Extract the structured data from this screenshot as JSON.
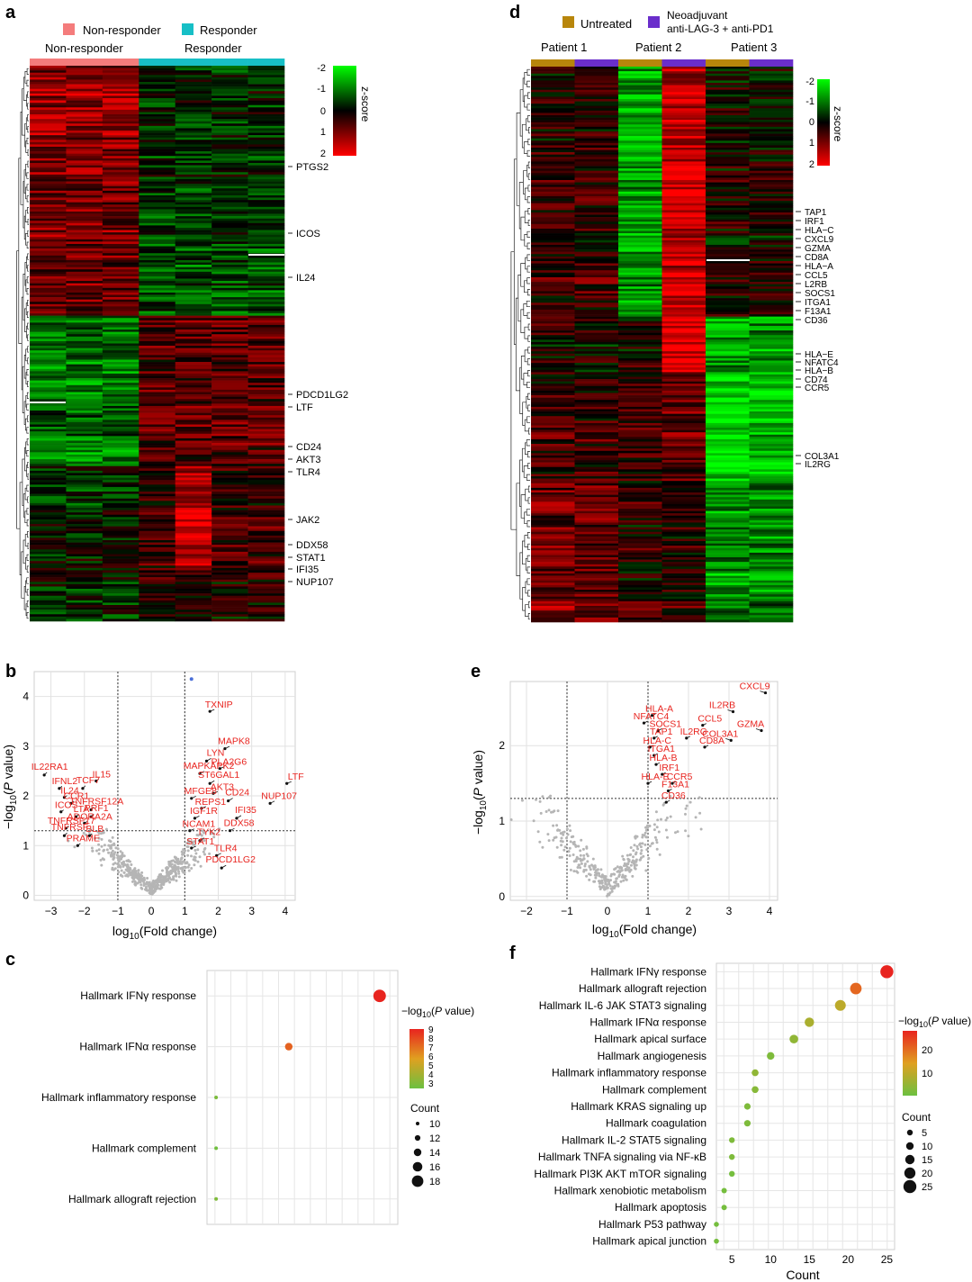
{
  "panels": {
    "a": "a",
    "b": "b",
    "c": "c",
    "d": "d",
    "e": "e",
    "f": "f"
  },
  "colors": {
    "non_responder": "#f47c7c",
    "responder": "#17bfc6",
    "untreated": "#b8860b",
    "neoadjuvant": "#6a2ecb",
    "heat_low": "#00ff00",
    "heat_mid": "#000000",
    "heat_high": "#ff0000",
    "sig_label": "#e8241f",
    "nonsig_point": "#b5b5b5",
    "sig_point_b": "#4a6fd8"
  },
  "chart_data": [
    {
      "panel": "a",
      "type": "heatmap",
      "legend": [
        {
          "label": "Non-responder",
          "color": "#f47c7c"
        },
        {
          "label": "Responder",
          "color": "#17bfc6"
        }
      ],
      "group_labels": [
        "Non-responder",
        "Responder"
      ],
      "groups": [
        "Non-responder",
        "Non-responder",
        "Non-responder",
        "Responder",
        "Responder",
        "Responder",
        "Responder"
      ],
      "colorbar": {
        "title": "z-score",
        "ticks": [
          "-2",
          "-1",
          "0",
          "1",
          "2"
        ]
      },
      "gene_labels": [
        "PTGS2",
        "ICOS",
        "IL24",
        "PDCD1LG2",
        "LTF",
        "CD24",
        "AKT3",
        "TLR4",
        "JAK2",
        "DDX58",
        "STAT1",
        "IFI35",
        "NUP107"
      ]
    },
    {
      "panel": "d",
      "type": "heatmap",
      "legend": [
        {
          "label": "Untreated",
          "color": "#b8860b"
        },
        {
          "label": "Neoadjuvant",
          "label2": "anti-LAG-3 + anti-PD1",
          "color": "#6a2ecb"
        }
      ],
      "group_labels": [
        "Patient 1",
        "Patient 2",
        "Patient 3"
      ],
      "groups": [
        "Untreated",
        "Neoadjuvant",
        "Untreated",
        "Neoadjuvant",
        "Untreated",
        "Neoadjuvant"
      ],
      "colorbar": {
        "title": "z-score",
        "ticks": [
          "-2",
          "-1",
          "0",
          "1",
          "2"
        ]
      },
      "gene_labels": [
        "TAP1",
        "IRF1",
        "HLA−C",
        "CXCL9",
        "GZMA",
        "CD8A",
        "HLA−A",
        "CCL5",
        "L2RB",
        "SOCS1",
        "ITGA1",
        "F13A1",
        "CD36",
        "HLA−E",
        "NFATC4",
        "HLA−B",
        "CD74",
        "CCR5",
        "COL3A1",
        "IL2RG"
      ]
    },
    {
      "panel": "b",
      "type": "scatter",
      "xlabel": "log10(Fold change)",
      "ylabel": "−log10(P value)",
      "xlim": [
        -3.5,
        4.3
      ],
      "ylim": [
        -0.1,
        4.5
      ],
      "xticks": [
        "−3",
        "−2",
        "−1",
        "0",
        "1",
        "2",
        "3",
        "4"
      ],
      "yticks": [
        "0",
        "1",
        "2",
        "3",
        "4"
      ],
      "thresholds": {
        "x": [
          -1,
          1
        ],
        "y": 1.3
      },
      "labeled_points": [
        {
          "label": "TXNIP",
          "x": 1.75,
          "y": 3.7
        },
        {
          "label": "MAPK8",
          "x": 2.2,
          "y": 2.95
        },
        {
          "label": "LYN",
          "x": 1.65,
          "y": 2.7
        },
        {
          "label": "PLA2G6",
          "x": 2.05,
          "y": 2.55
        },
        {
          "label": "MAPKAPK2",
          "x": 1.45,
          "y": 2.45
        },
        {
          "label": "ST6GAL1",
          "x": 1.75,
          "y": 2.25
        },
        {
          "label": "AKT3",
          "x": 1.85,
          "y": 2.05
        },
        {
          "label": "MFGE8",
          "x": 1.2,
          "y": 1.95
        },
        {
          "label": "CD24",
          "x": 2.3,
          "y": 1.9
        },
        {
          "label": "REPS1",
          "x": 1.5,
          "y": 1.75
        },
        {
          "label": "IGF1R",
          "x": 1.3,
          "y": 1.55
        },
        {
          "label": "IFI35",
          "x": 2.55,
          "y": 1.55
        },
        {
          "label": "NCAM1",
          "x": 1.15,
          "y": 1.3
        },
        {
          "label": "DDX58",
          "x": 2.35,
          "y": 1.3
        },
        {
          "label": "TYK2",
          "x": 1.45,
          "y": 1.1
        },
        {
          "label": "STAT1",
          "x": 1.2,
          "y": 0.95
        },
        {
          "label": "TLR4",
          "x": 1.95,
          "y": 0.8
        },
        {
          "label": "PDCD1LG2",
          "x": 2.1,
          "y": 0.55
        },
        {
          "label": "LTF",
          "x": 4.05,
          "y": 2.25
        },
        {
          "label": "NUP107",
          "x": 3.55,
          "y": 1.85
        },
        {
          "label": "IL22RA1",
          "x": -3.2,
          "y": 2.42
        },
        {
          "label": "IL15",
          "x": -1.65,
          "y": 2.3
        },
        {
          "label": "IFNL2",
          "x": -2.75,
          "y": 2.15
        },
        {
          "label": "TCF7",
          "x": -2.05,
          "y": 2.15
        },
        {
          "label": "IL24",
          "x": -2.6,
          "y": 1.97
        },
        {
          "label": "CCR1",
          "x": -2.4,
          "y": 1.85
        },
        {
          "label": "TNFRSF12A",
          "x": -1.8,
          "y": 1.72
        },
        {
          "label": "ICOS",
          "x": -2.7,
          "y": 1.68
        },
        {
          "label": "LTA",
          "x": -2.25,
          "y": 1.58
        },
        {
          "label": "PRF1",
          "x": -1.8,
          "y": 1.58
        },
        {
          "label": "ADORA2A",
          "x": -2.0,
          "y": 1.45
        },
        {
          "label": "TNFRSF17",
          "x": -2.55,
          "y": 1.35
        },
        {
          "label": "TNFRSF",
          "x": -2.6,
          "y": 1.2
        },
        {
          "label": "BLB",
          "x": -1.85,
          "y": 1.2
        },
        {
          "label": "PRAME",
          "x": -2.2,
          "y": 1.0
        }
      ],
      "top_point": {
        "x": 1.2,
        "y": 4.35
      }
    },
    {
      "panel": "e",
      "type": "scatter",
      "xlabel": "log10(Fold change)",
      "ylabel": "−log10(P value)",
      "xlim": [
        -2.4,
        4.2
      ],
      "ylim": [
        -0.05,
        2.85
      ],
      "xticks": [
        "−2",
        "−1",
        "0",
        "1",
        "2",
        "3",
        "4"
      ],
      "yticks": [
        "0",
        "1",
        "2"
      ],
      "thresholds": {
        "x": [
          -1,
          1
        ],
        "y": 1.3
      },
      "labeled_points": [
        {
          "label": "CXCL9",
          "x": 3.9,
          "y": 2.7
        },
        {
          "label": "GZMA",
          "x": 3.8,
          "y": 2.2
        },
        {
          "label": "IL2RB",
          "x": 3.1,
          "y": 2.45
        },
        {
          "label": "CCL5",
          "x": 2.35,
          "y": 2.27
        },
        {
          "label": "COL3A1",
          "x": 3.05,
          "y": 2.07
        },
        {
          "label": "IL2RG",
          "x": 1.95,
          "y": 2.1
        },
        {
          "label": "CD8A",
          "x": 2.4,
          "y": 1.98
        },
        {
          "label": "HLA-A",
          "x": 1.1,
          "y": 2.4
        },
        {
          "label": "NFATC4",
          "x": 0.9,
          "y": 2.3
        },
        {
          "label": "SOCS1",
          "x": 1.25,
          "y": 2.2
        },
        {
          "label": "TAP1",
          "x": 1.15,
          "y": 2.1
        },
        {
          "label": "HLA-C",
          "x": 1.05,
          "y": 1.98
        },
        {
          "label": "ITGA1",
          "x": 1.15,
          "y": 1.87
        },
        {
          "label": "HLA-B",
          "x": 1.2,
          "y": 1.75
        },
        {
          "label": "IRF1",
          "x": 1.35,
          "y": 1.62
        },
        {
          "label": "HLA-E",
          "x": 1.0,
          "y": 1.5
        },
        {
          "label": "CCR5",
          "x": 1.6,
          "y": 1.5
        },
        {
          "label": "F13A1",
          "x": 1.5,
          "y": 1.4
        },
        {
          "label": "CD36",
          "x": 1.45,
          "y": 1.25
        }
      ]
    },
    {
      "panel": "c",
      "type": "scatter",
      "subtype": "dotplot",
      "categories": [
        "Hallmark IFNγ response",
        "Hallmark IFNα response",
        "Hallmark inflammatory response",
        "Hallmark complement",
        "Hallmark allograft rejection"
      ],
      "series": [
        {
          "count": 19,
          "neglog10p": 9
        },
        {
          "count": 14,
          "neglog10p": 7.5
        },
        {
          "count": 10,
          "neglog10p": 3.4
        },
        {
          "count": 10,
          "neglog10p": 3.1
        },
        {
          "count": 10,
          "neglog10p": 3.5
        }
      ],
      "xlim": [
        9.5,
        20
      ],
      "color_legend_title": "−log10(P value)",
      "color_ticks": [
        "9",
        "8",
        "7",
        "6",
        "5",
        "4",
        "3"
      ],
      "size_legend_title": "Count",
      "size_ticks": [
        "10",
        "12",
        "14",
        "16",
        "18"
      ]
    },
    {
      "panel": "f",
      "type": "scatter",
      "subtype": "dotplot",
      "xlabel": "Count",
      "categories": [
        "Hallmark IFNγ response",
        "Hallmark allograft rejection",
        "Hallmark IL-6 JAK STAT3 signaling",
        "Hallmark IFNα response",
        "Hallmark apical surface",
        "Hallmark angiogenesis",
        "Hallmark inflammatory response",
        "Hallmark complement",
        "Hallmark KRAS signaling up",
        "Hallmark coagulation",
        "Hallmark IL-2 STAT5 signaling",
        "Hallmark TNFA signaling via NF-κB",
        "Hallmark PI3K AKT mTOR signaling",
        "Hallmark xenobiotic metabolism",
        "Hallmark apoptosis",
        "Hallmark P53 pathway",
        "Hallmark apical junction"
      ],
      "series": [
        {
          "count": 25,
          "neglog10p": 29
        },
        {
          "count": 21,
          "neglog10p": 22
        },
        {
          "count": 19,
          "neglog10p": 12
        },
        {
          "count": 15,
          "neglog10p": 10
        },
        {
          "count": 13,
          "neglog10p": 7
        },
        {
          "count": 10,
          "neglog10p": 5
        },
        {
          "count": 8,
          "neglog10p": 7
        },
        {
          "count": 8,
          "neglog10p": 6
        },
        {
          "count": 7,
          "neglog10p": 5
        },
        {
          "count": 7,
          "neglog10p": 5
        },
        {
          "count": 5,
          "neglog10p": 5
        },
        {
          "count": 5,
          "neglog10p": 5
        },
        {
          "count": 5,
          "neglog10p": 4
        },
        {
          "count": 4,
          "neglog10p": 4
        },
        {
          "count": 4,
          "neglog10p": 4
        },
        {
          "count": 3,
          "neglog10p": 4
        },
        {
          "count": 3,
          "neglog10p": 4
        }
      ],
      "xlim": [
        3,
        26
      ],
      "xticks": [
        "5",
        "10",
        "15",
        "20",
        "25"
      ],
      "color_legend_title": "−log10(P value)",
      "color_ticks": [
        "20",
        "10"
      ],
      "size_legend_title": "Count",
      "size_ticks": [
        "5",
        "10",
        "15",
        "20",
        "25"
      ]
    }
  ]
}
